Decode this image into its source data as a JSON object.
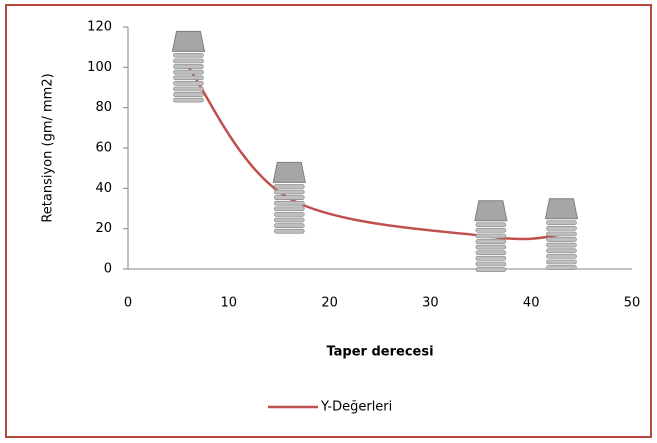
{
  "chart_data": {
    "type": "line",
    "x_label": "Taper derecesi",
    "y_label": "Retansiyon (gm/ mm2)",
    "x": [
      6,
      16,
      36,
      43
    ],
    "series": [
      {
        "name": "Y-Değerleri",
        "color": "#c0504d",
        "values": [
          100,
          35,
          16,
          17
        ]
      }
    ],
    "xlim": [
      0,
      50
    ],
    "xticks": [
      0,
      10,
      20,
      30,
      40,
      50
    ],
    "ylim": [
      0,
      120
    ],
    "yticks": [
      0,
      20,
      40,
      60,
      80,
      100,
      120
    ],
    "grid": false,
    "legend": "bottom",
    "smooth": true
  }
}
